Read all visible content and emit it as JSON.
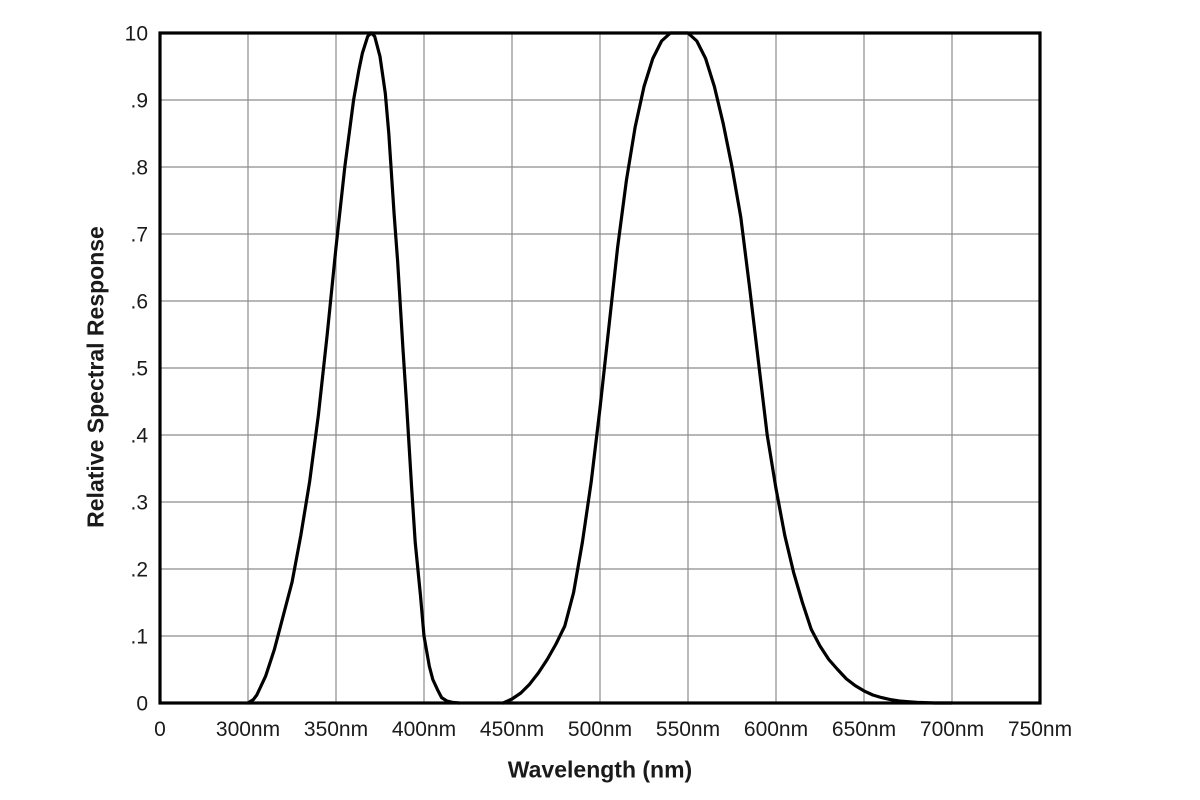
{
  "chart_data": {
    "type": "line",
    "title": "",
    "xlabel": "Wavelength (nm)",
    "ylabel": "Relative Spectral Response",
    "x_axis_note": "non-linear axis: first division spans 0 to 300nm, then one division per 50nm up to 750nm",
    "x_tick_labels": [
      "0",
      "300nm",
      "350nm",
      "400nm",
      "450nm",
      "500nm",
      "550nm",
      "600nm",
      "650nm",
      "700nm",
      "750nm"
    ],
    "y_ticks": [
      {
        "label": "0",
        "value": 0.0
      },
      {
        "label": ".1",
        "value": 0.1
      },
      {
        "label": ".2",
        "value": 0.2
      },
      {
        "label": ".3",
        "value": 0.3
      },
      {
        "label": ".4",
        "value": 0.4
      },
      {
        "label": ".5",
        "value": 0.5
      },
      {
        "label": ".6",
        "value": 0.6
      },
      {
        "label": ".7",
        "value": 0.7
      },
      {
        "label": ".8",
        "value": 0.8
      },
      {
        "label": ".9",
        "value": 0.9
      },
      {
        "label": "10",
        "value": 1.0
      }
    ],
    "ylim": [
      0,
      1
    ],
    "grid": true,
    "legend": "none",
    "line_color": "#000000",
    "grid_color": "#8c8c8c",
    "frame_color": "#000000",
    "series": [
      {
        "name": "uv_peak_370nm",
        "peak_nm": 370,
        "points": [
          [
            300,
            0
          ],
          [
            303,
            0.005
          ],
          [
            305,
            0.012
          ],
          [
            310,
            0.04
          ],
          [
            315,
            0.08
          ],
          [
            320,
            0.13
          ],
          [
            325,
            0.18
          ],
          [
            330,
            0.25
          ],
          [
            335,
            0.33
          ],
          [
            340,
            0.43
          ],
          [
            345,
            0.55
          ],
          [
            350,
            0.68
          ],
          [
            355,
            0.8
          ],
          [
            360,
            0.9
          ],
          [
            363,
            0.945
          ],
          [
            365,
            0.97
          ],
          [
            368,
            0.995
          ],
          [
            370,
            1.0
          ],
          [
            372,
            0.995
          ],
          [
            375,
            0.965
          ],
          [
            378,
            0.91
          ],
          [
            380,
            0.85
          ],
          [
            383,
            0.73
          ],
          [
            385,
            0.66
          ],
          [
            388,
            0.53
          ],
          [
            390,
            0.45
          ],
          [
            393,
            0.32
          ],
          [
            395,
            0.24
          ],
          [
            398,
            0.16
          ],
          [
            400,
            0.1
          ],
          [
            403,
            0.055
          ],
          [
            405,
            0.035
          ],
          [
            408,
            0.018
          ],
          [
            410,
            0.008
          ],
          [
            413,
            0.003
          ],
          [
            416,
            0.001
          ],
          [
            420,
            0
          ]
        ]
      },
      {
        "name": "visible_peak_545nm",
        "peak_nm": 545,
        "points": [
          [
            445,
            0
          ],
          [
            450,
            0.006
          ],
          [
            455,
            0.015
          ],
          [
            460,
            0.028
          ],
          [
            465,
            0.045
          ],
          [
            470,
            0.065
          ],
          [
            475,
            0.088
          ],
          [
            480,
            0.115
          ],
          [
            485,
            0.165
          ],
          [
            490,
            0.24
          ],
          [
            495,
            0.33
          ],
          [
            500,
            0.44
          ],
          [
            505,
            0.56
          ],
          [
            510,
            0.68
          ],
          [
            515,
            0.78
          ],
          [
            520,
            0.86
          ],
          [
            525,
            0.92
          ],
          [
            530,
            0.962
          ],
          [
            535,
            0.988
          ],
          [
            540,
            1.0
          ],
          [
            545,
            1.0
          ],
          [
            550,
            1.0
          ],
          [
            555,
            0.988
          ],
          [
            560,
            0.962
          ],
          [
            565,
            0.92
          ],
          [
            570,
            0.865
          ],
          [
            575,
            0.8
          ],
          [
            580,
            0.725
          ],
          [
            585,
            0.62
          ],
          [
            590,
            0.51
          ],
          [
            595,
            0.4
          ],
          [
            600,
            0.32
          ],
          [
            605,
            0.25
          ],
          [
            610,
            0.195
          ],
          [
            615,
            0.15
          ],
          [
            620,
            0.11
          ],
          [
            625,
            0.085
          ],
          [
            630,
            0.065
          ],
          [
            635,
            0.05
          ],
          [
            640,
            0.036
          ],
          [
            645,
            0.026
          ],
          [
            650,
            0.018
          ],
          [
            655,
            0.012
          ],
          [
            660,
            0.008
          ],
          [
            665,
            0.005
          ],
          [
            670,
            0.003
          ],
          [
            675,
            0.002
          ],
          [
            680,
            0.001
          ],
          [
            690,
            0
          ],
          [
            700,
            0
          ]
        ]
      }
    ]
  }
}
